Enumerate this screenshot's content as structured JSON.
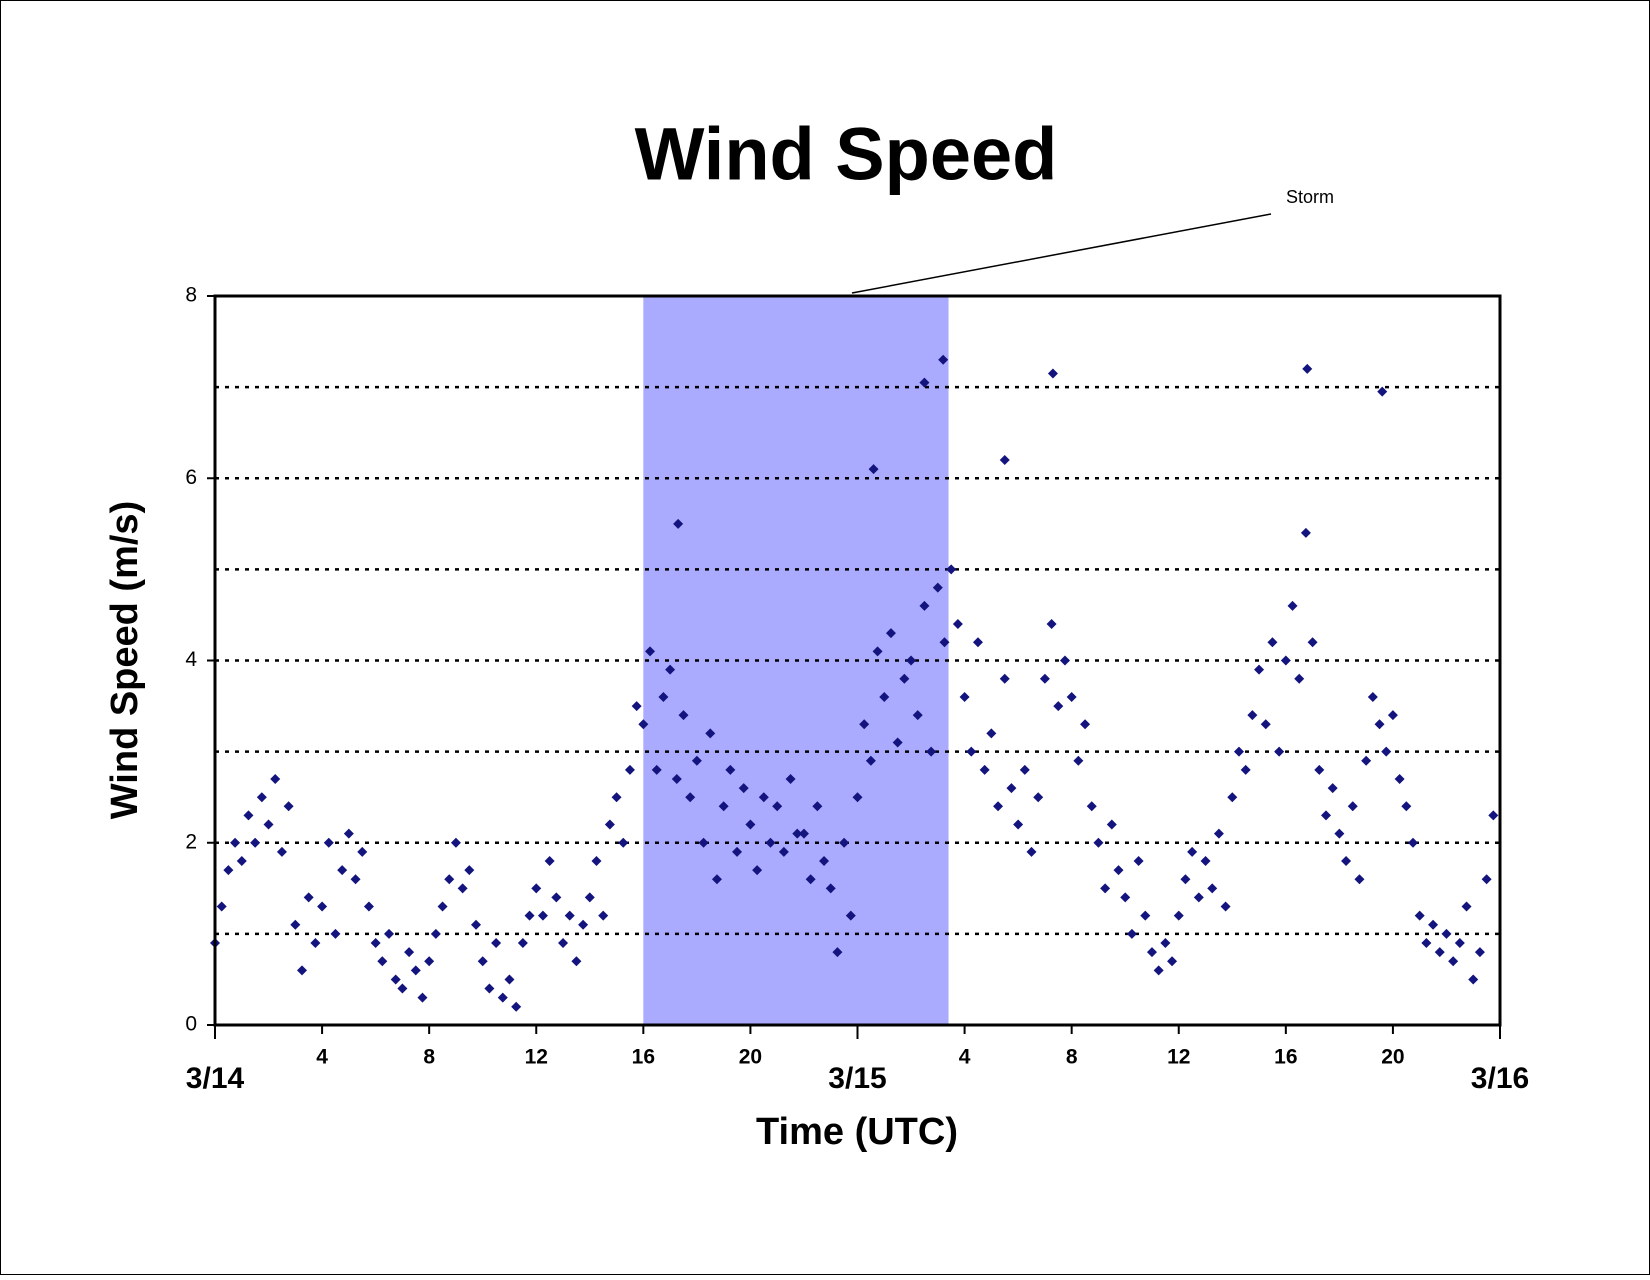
{
  "chart_data": {
    "type": "scatter",
    "title": "Wind Speed",
    "xlabel": "Time (UTC)",
    "ylabel": "Wind Speed (m/s)",
    "color": "#14147f",
    "xlim": [
      0,
      48
    ],
    "ylim": [
      0,
      8
    ],
    "xticks": [
      {
        "value": 0,
        "label": "3/14"
      },
      4,
      8,
      12,
      16,
      20,
      {
        "value": 24,
        "label": "3/15"
      },
      {
        "value": 28,
        "label": "4"
      },
      {
        "value": 32,
        "label": "8"
      },
      {
        "value": 36,
        "label": "12"
      },
      {
        "value": 40,
        "label": "16"
      },
      {
        "value": 44,
        "label": "20"
      },
      {
        "value": 48,
        "label": "3/16"
      }
    ],
    "yticks": [
      0,
      2,
      4,
      6,
      8
    ],
    "ygrid": [
      1,
      2,
      3,
      4,
      5,
      6,
      7
    ],
    "annotation": {
      "text": "Storm",
      "x_range": [
        16,
        27.4
      ],
      "color": "#aaaaff"
    },
    "x": [
      0,
      0.25,
      0.5,
      0.75,
      1,
      1.25,
      1.5,
      1.75,
      2,
      2.25,
      2.5,
      2.75,
      3,
      3.25,
      3.5,
      3.75,
      4,
      4.25,
      4.5,
      4.75,
      5,
      5.25,
      5.5,
      5.75,
      6,
      6.25,
      6.5,
      6.75,
      7,
      7.25,
      7.5,
      7.75,
      8,
      8.25,
      8.5,
      8.75,
      9,
      9.25,
      9.5,
      9.75,
      10,
      10.25,
      10.5,
      10.75,
      11,
      11.25,
      11.5,
      11.75,
      12,
      12.25,
      12.5,
      12.75,
      13,
      13.25,
      13.5,
      13.75,
      14,
      14.25,
      14.5,
      14.75,
      15,
      15.25,
      15.5,
      15.75,
      16,
      16.25,
      16.5,
      16.75,
      17,
      17.25,
      17.5,
      17.75,
      18,
      18.25,
      18.5,
      18.75,
      19,
      19.25,
      19.5,
      19.75,
      20,
      20.25,
      20.5,
      20.75,
      21,
      21.25,
      21.5,
      21.75,
      22,
      22.25,
      22.5,
      22.75,
      23,
      23.25,
      23.5,
      23.75,
      24,
      24.25,
      24.5,
      24.75,
      25,
      25.25,
      25.5,
      25.75,
      26,
      26.25,
      26.5,
      26.75,
      27,
      27.25,
      27.5,
      27.75,
      28,
      28.25,
      28.5,
      28.75,
      29,
      29.25,
      29.5,
      29.75,
      30,
      30.25,
      30.5,
      30.75,
      31,
      31.25,
      31.5,
      31.75,
      32,
      32.25,
      32.5,
      32.75,
      33,
      33.25,
      33.5,
      33.75,
      34,
      34.25,
      34.5,
      34.75,
      35,
      35.25,
      35.5,
      35.75,
      36,
      36.25,
      36.5,
      36.75,
      37,
      37.25,
      37.5,
      37.75,
      38,
      38.25,
      38.5,
      38.75,
      39,
      39.25,
      39.5,
      39.75,
      40,
      40.25,
      40.5,
      40.75,
      41,
      41.25,
      41.5,
      41.75,
      42,
      42.25,
      42.5,
      42.75,
      43,
      43.25,
      43.5,
      43.75,
      44,
      44.25,
      44.5,
      44.75,
      45,
      45.25,
      45.5,
      45.75,
      46,
      46.25,
      46.5,
      46.75,
      47,
      47.25,
      47.5,
      47.75,
      17.3,
      26.5,
      27.2,
      31.3,
      40.8,
      43.6,
      29.5,
      24.6
    ],
    "values": [
      0.9,
      1.3,
      1.7,
      2.0,
      1.8,
      2.3,
      2.0,
      2.5,
      2.2,
      2.7,
      1.9,
      2.4,
      1.1,
      0.6,
      1.4,
      0.9,
      1.3,
      2.0,
      1.0,
      1.7,
      2.1,
      1.6,
      1.9,
      1.3,
      0.9,
      0.7,
      1.0,
      0.5,
      0.4,
      0.8,
      0.6,
      0.3,
      0.7,
      1.0,
      1.3,
      1.6,
      2.0,
      1.5,
      1.7,
      1.1,
      0.7,
      0.4,
      0.9,
      0.3,
      0.5,
      0.2,
      0.9,
      1.2,
      1.5,
      1.2,
      1.8,
      1.4,
      0.9,
      1.2,
      0.7,
      1.1,
      1.4,
      1.8,
      1.2,
      2.2,
      2.5,
      2.0,
      2.8,
      3.5,
      3.3,
      4.1,
      2.8,
      3.6,
      3.9,
      2.7,
      3.4,
      2.5,
      2.9,
      2.0,
      3.2,
      1.6,
      2.4,
      2.8,
      1.9,
      2.6,
      2.2,
      1.7,
      2.5,
      2.0,
      2.4,
      1.9,
      2.7,
      2.1,
      2.1,
      1.6,
      2.4,
      1.8,
      1.5,
      0.8,
      2.0,
      1.2,
      2.5,
      3.3,
      2.9,
      4.1,
      3.6,
      4.3,
      3.1,
      3.8,
      4.0,
      3.4,
      4.6,
      3.0,
      4.8,
      4.2,
      5.0,
      4.4,
      3.6,
      3.0,
      4.2,
      2.8,
      3.2,
      2.4,
      3.8,
      2.6,
      2.2,
      2.8,
      1.9,
      2.5,
      3.8,
      4.4,
      3.5,
      4.0,
      3.6,
      2.9,
      3.3,
      2.4,
      2.0,
      1.5,
      2.2,
      1.7,
      1.4,
      1.0,
      1.8,
      1.2,
      0.8,
      0.6,
      0.9,
      0.7,
      1.2,
      1.6,
      1.9,
      1.4,
      1.8,
      1.5,
      2.1,
      1.3,
      2.5,
      3.0,
      2.8,
      3.4,
      3.9,
      3.3,
      4.2,
      3.0,
      4.0,
      4.6,
      3.8,
      5.4,
      4.2,
      2.8,
      2.3,
      2.6,
      2.1,
      1.8,
      2.4,
      1.6,
      2.9,
      3.6,
      3.3,
      3.0,
      3.4,
      2.7,
      2.4,
      2.0,
      1.2,
      0.9,
      1.1,
      0.8,
      1.0,
      0.7,
      0.9,
      1.3,
      0.5,
      0.8,
      1.6,
      2.3,
      5.5,
      7.05,
      7.3,
      7.15,
      7.2,
      6.95,
      6.2,
      6.1
    ]
  }
}
